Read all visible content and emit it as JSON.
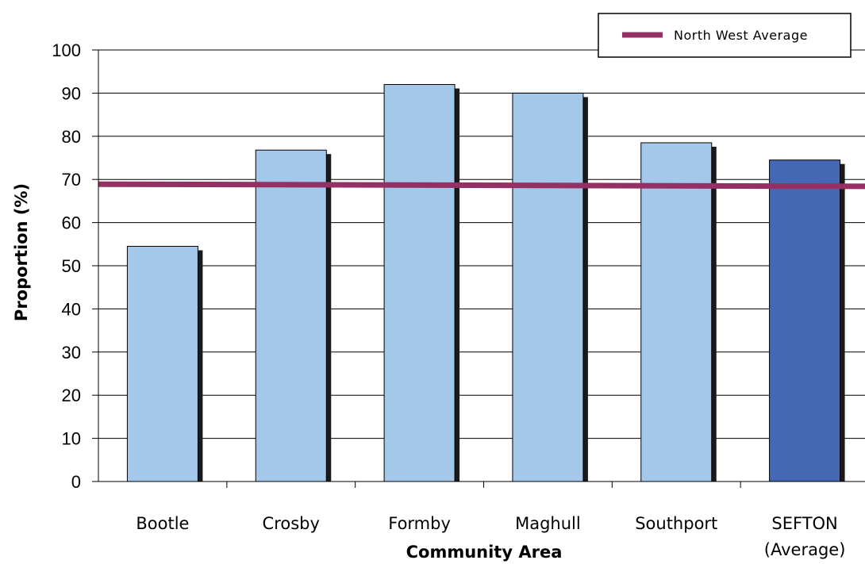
{
  "chart_data": {
    "type": "bar",
    "categories": [
      "Bootle",
      "Crosby",
      "Formby",
      "Maghull",
      "Southport",
      "SEFTON\n(Average)"
    ],
    "values": [
      54.5,
      76.8,
      92.0,
      90.0,
      78.5,
      74.5
    ],
    "highlight_index": 5,
    "reference_line": {
      "name": "North West Average",
      "y_start": 68.9,
      "y_end": 68.4
    },
    "xlabel": "Community Area",
    "ylabel": "Proportion (%)",
    "ylim": [
      0,
      100
    ],
    "yticks": [
      0,
      10,
      20,
      30,
      40,
      50,
      60,
      70,
      80,
      90,
      100
    ],
    "grid": true,
    "legend_position": "top-right",
    "colors": {
      "bar": "#A4C8E9",
      "highlight_bar": "#4568B4",
      "bar_shadow": "#1a1a1a",
      "reference_line": "#943063",
      "grid": "#000000"
    }
  }
}
